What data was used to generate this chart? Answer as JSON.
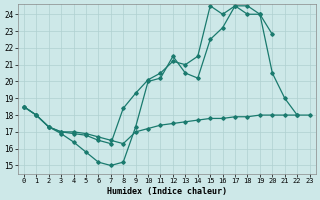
{
  "xlabel": "Humidex (Indice chaleur)",
  "bg_color": "#cde8e8",
  "grid_color": "#b0d0d0",
  "line_color": "#1a7a6e",
  "xlim": [
    -0.5,
    23.5
  ],
  "ylim": [
    14.5,
    24.6
  ],
  "yticks": [
    15,
    16,
    17,
    18,
    19,
    20,
    21,
    22,
    23,
    24
  ],
  "xticks": [
    0,
    1,
    2,
    3,
    4,
    5,
    6,
    7,
    8,
    9,
    10,
    11,
    12,
    13,
    14,
    15,
    16,
    17,
    18,
    19,
    20,
    21,
    22,
    23
  ],
  "line1_x": [
    0,
    1,
    2,
    3,
    4,
    5,
    6,
    7,
    8,
    9,
    10,
    11,
    12,
    13,
    14,
    15,
    16,
    17,
    18,
    19,
    20,
    21,
    22
  ],
  "line1_y": [
    18.5,
    18.0,
    17.3,
    16.9,
    16.4,
    15.8,
    15.2,
    15.0,
    15.2,
    17.3,
    20.0,
    20.2,
    21.5,
    20.5,
    20.2,
    22.5,
    23.2,
    24.5,
    24.5,
    24.0,
    20.5,
    19.0,
    18.0
  ],
  "line2_x": [
    0,
    1,
    2,
    3,
    4,
    5,
    6,
    7,
    8,
    9,
    10,
    11,
    12,
    13,
    14,
    15,
    16,
    17,
    18,
    19,
    20
  ],
  "line2_y": [
    18.5,
    18.0,
    17.3,
    17.0,
    16.9,
    16.8,
    16.5,
    16.3,
    18.4,
    19.3,
    20.1,
    20.5,
    21.2,
    21.0,
    21.5,
    24.5,
    24.0,
    24.5,
    24.0,
    24.0,
    22.8
  ],
  "line3_x": [
    0,
    1,
    2,
    3,
    4,
    5,
    6,
    7,
    8,
    9,
    10,
    11,
    12,
    13,
    14,
    15,
    16,
    17,
    18,
    19,
    20,
    21,
    22,
    23
  ],
  "line3_y": [
    18.5,
    18.0,
    17.3,
    17.0,
    17.0,
    16.9,
    16.7,
    16.5,
    16.3,
    17.0,
    17.2,
    17.4,
    17.5,
    17.6,
    17.7,
    17.8,
    17.8,
    17.9,
    17.9,
    18.0,
    18.0,
    18.0,
    18.0,
    18.0
  ]
}
